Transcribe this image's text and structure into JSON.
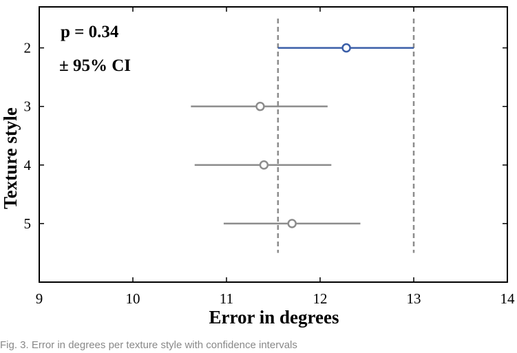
{
  "chart_data": {
    "type": "scatter",
    "xlabel": "Error in degrees",
    "ylabel": "Texture style",
    "xlim": [
      9,
      14
    ],
    "x_ticks": [
      9,
      10,
      11,
      12,
      13,
      14
    ],
    "y_ticks": [
      2,
      3,
      4,
      5
    ],
    "y_range": [
      1.3,
      6.0
    ],
    "y_inverted": true,
    "grid": false,
    "annotations": [
      "p = 0.34",
      "± 95% CI"
    ],
    "points": [
      {
        "category": 2,
        "mean": 12.28,
        "ci_low": 11.55,
        "ci_high": 13.0,
        "color": "#3a5ea8"
      },
      {
        "category": 3,
        "mean": 11.36,
        "ci_low": 10.62,
        "ci_high": 12.08,
        "color": "#8c8c8c"
      },
      {
        "category": 4,
        "mean": 11.4,
        "ci_low": 10.66,
        "ci_high": 12.12,
        "color": "#8c8c8c"
      },
      {
        "category": 5,
        "mean": 11.7,
        "ci_low": 10.97,
        "ci_high": 12.43,
        "color": "#8c8c8c"
      }
    ],
    "reference_lines_x": [
      11.55,
      13.0
    ],
    "reference_line_y_range": [
      1.5,
      5.5
    ],
    "reference_line_color": "#8c8c8c"
  },
  "caption": "Fig. 3. Error in degrees per texture style with confidence intervals"
}
